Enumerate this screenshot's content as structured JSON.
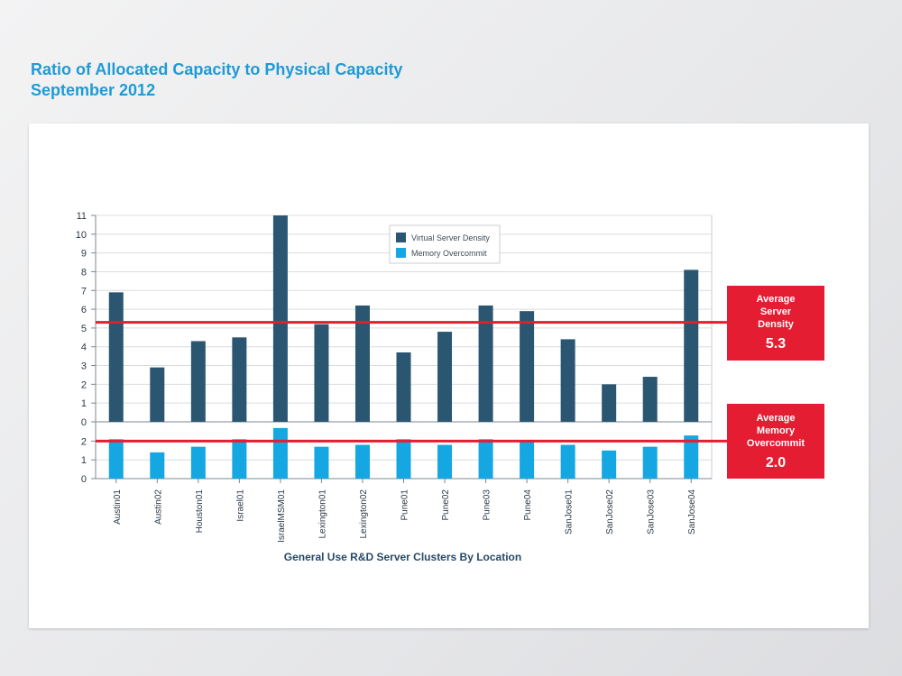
{
  "header": {
    "title_line1": "Ratio of Allocated Capacity to Physical Capacity",
    "title_line2": "September 2012"
  },
  "colors": {
    "density": "#2b5672",
    "memory": "#14a7e1",
    "average_line": "#e41d32",
    "callout": "#e41d32"
  },
  "callouts": {
    "density": {
      "label_lines": [
        "Average",
        "Server",
        "Density"
      ],
      "value": "5.3"
    },
    "memory": {
      "label_lines": [
        "Average",
        "Memory",
        "Overcommit"
      ],
      "value": "2.0"
    }
  },
  "chart_data": {
    "type": "bar",
    "xlabel": "General Use R&D Server Clusters By Location",
    "categories": [
      "Austin01",
      "Austin02",
      "Houston01",
      "Israel01",
      "IsraelMSM01",
      "Lexington01",
      "Lexington02",
      "Pune01",
      "Pune02",
      "Pune03",
      "Pune04",
      "SanJose01",
      "SanJose02",
      "SanJose03",
      "SanJose04"
    ],
    "series": [
      {
        "name": "Virtual Server Density",
        "panel": "upper",
        "ylim": [
          0,
          11
        ],
        "yticks": [
          0,
          1,
          2,
          3,
          4,
          5,
          6,
          7,
          8,
          9,
          10,
          11
        ],
        "average": 5.3,
        "values": [
          6.9,
          2.9,
          4.3,
          4.5,
          11.0,
          5.2,
          6.2,
          3.7,
          4.8,
          6.2,
          5.9,
          4.4,
          2.0,
          2.4,
          8.1
        ]
      },
      {
        "name": "Memory Overcommit",
        "panel": "lower",
        "ylim": [
          0,
          3
        ],
        "yticks": [
          0,
          1,
          2
        ],
        "average": 2.0,
        "values": [
          2.1,
          1.4,
          1.7,
          2.1,
          2.7,
          1.7,
          1.8,
          2.1,
          1.8,
          2.1,
          2.0,
          1.8,
          1.5,
          1.7,
          2.3
        ]
      }
    ],
    "legend": {
      "placement": "top-center"
    },
    "grid": true
  }
}
